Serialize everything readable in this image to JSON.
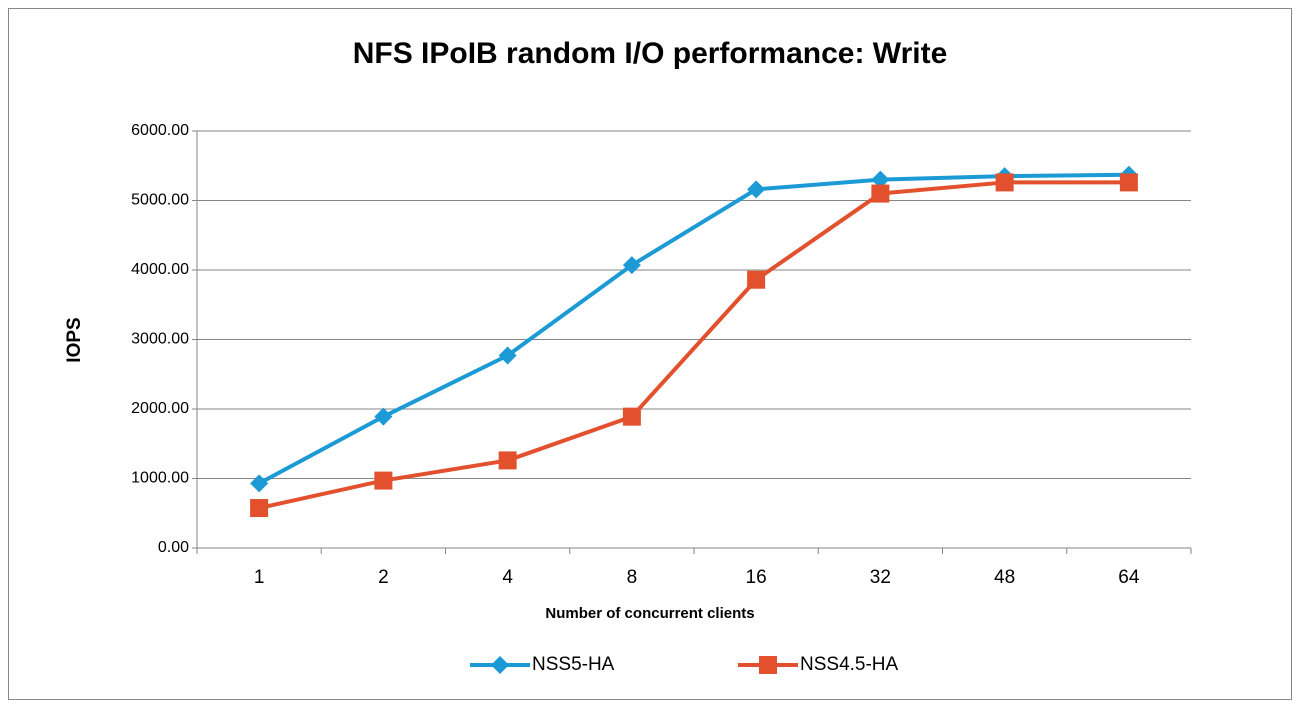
{
  "chart_data": {
    "type": "line",
    "title": "NFS IPoIB random I/O performance: Write",
    "xlabel": "Number of concurrent clients",
    "ylabel": "IOPS",
    "categories": [
      "1",
      "2",
      "4",
      "8",
      "16",
      "32",
      "48",
      "64"
    ],
    "series": [
      {
        "name": "NSS5-HA",
        "color": "#1b9ad6",
        "marker": "diamond",
        "values": [
          930,
          1890,
          2770,
          4070,
          5160,
          5300,
          5350,
          5370
        ]
      },
      {
        "name": "NSS4.5-HA",
        "color": "#e2502d",
        "marker": "square",
        "values": [
          575,
          970,
          1260,
          1890,
          3860,
          5100,
          5260,
          5260
        ]
      }
    ],
    "ylim": [
      0,
      6000
    ],
    "yticks": [
      {
        "value": 0,
        "label": "0.00"
      },
      {
        "value": 1000,
        "label": "1000.00"
      },
      {
        "value": 2000,
        "label": "2000.00"
      },
      {
        "value": 3000,
        "label": "3000.00"
      },
      {
        "value": 4000,
        "label": "4000.00"
      },
      {
        "value": 5000,
        "label": "5000.00"
      },
      {
        "value": 6000,
        "label": "6000.00"
      }
    ],
    "grid": true,
    "legend": "bottom"
  }
}
